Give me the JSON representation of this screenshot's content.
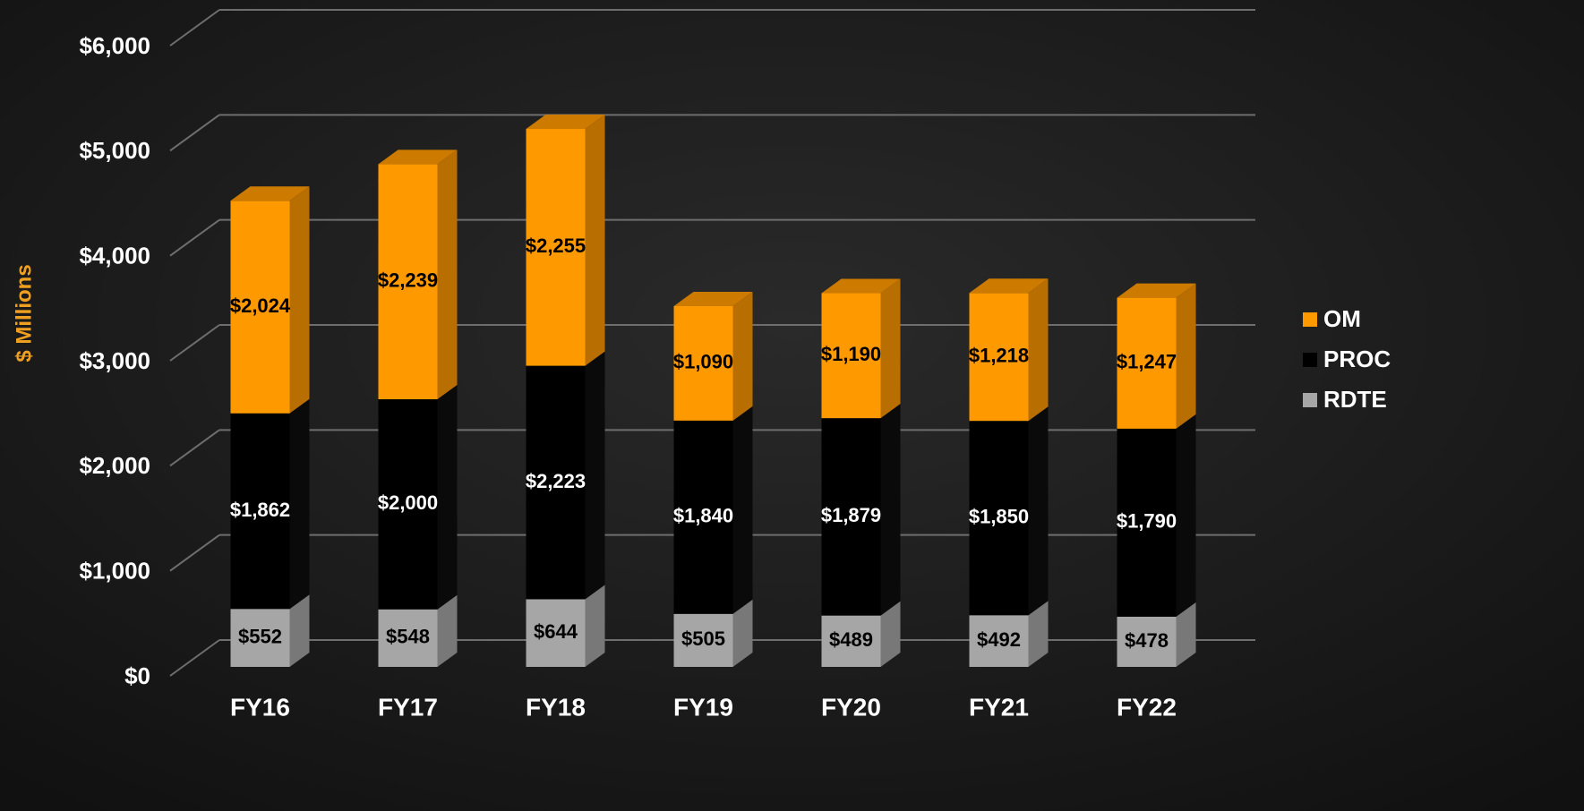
{
  "chart_data": {
    "type": "stacked_bar_3d",
    "y_label": "$ Millions",
    "categories": [
      "FY16",
      "FY17",
      "FY18",
      "FY19",
      "FY20",
      "FY21",
      "FY22"
    ],
    "series": [
      {
        "name": "RDTE",
        "color": "#a6a6a6",
        "label_color": "#000000",
        "values": [
          552,
          548,
          644,
          505,
          489,
          492,
          478
        ],
        "value_labels": [
          "$552",
          "$548",
          "$644",
          "$505",
          "$489",
          "$492",
          "$478"
        ]
      },
      {
        "name": "PROC",
        "color": "#000000",
        "label_color": "#ffffff",
        "values": [
          1862,
          2000,
          2223,
          1840,
          1879,
          1850,
          1790
        ],
        "value_labels": [
          "$1,862",
          "$2,000",
          "$2,223",
          "$1,840",
          "$1,879",
          "$1,850",
          "$1,790"
        ]
      },
      {
        "name": "OM",
        "color": "#ff9900",
        "label_color": "#000000",
        "values": [
          2024,
          2239,
          2255,
          1090,
          1190,
          1218,
          1247
        ],
        "value_labels": [
          "$2,024",
          "$2,239",
          "$2,255",
          "$1,090",
          "$1,190",
          "$1,218",
          "$1,247"
        ]
      }
    ],
    "ylim": [
      0,
      6000
    ],
    "yticks": [
      {
        "value": 0,
        "label": "$0"
      },
      {
        "value": 1000,
        "label": "$1,000"
      },
      {
        "value": 2000,
        "label": "$2,000"
      },
      {
        "value": 3000,
        "label": "$3,000"
      },
      {
        "value": 4000,
        "label": "$4,000"
      },
      {
        "value": 5000,
        "label": "$5,000"
      },
      {
        "value": 6000,
        "label": "$6,000"
      }
    ],
    "grid": true,
    "legend": "right"
  }
}
